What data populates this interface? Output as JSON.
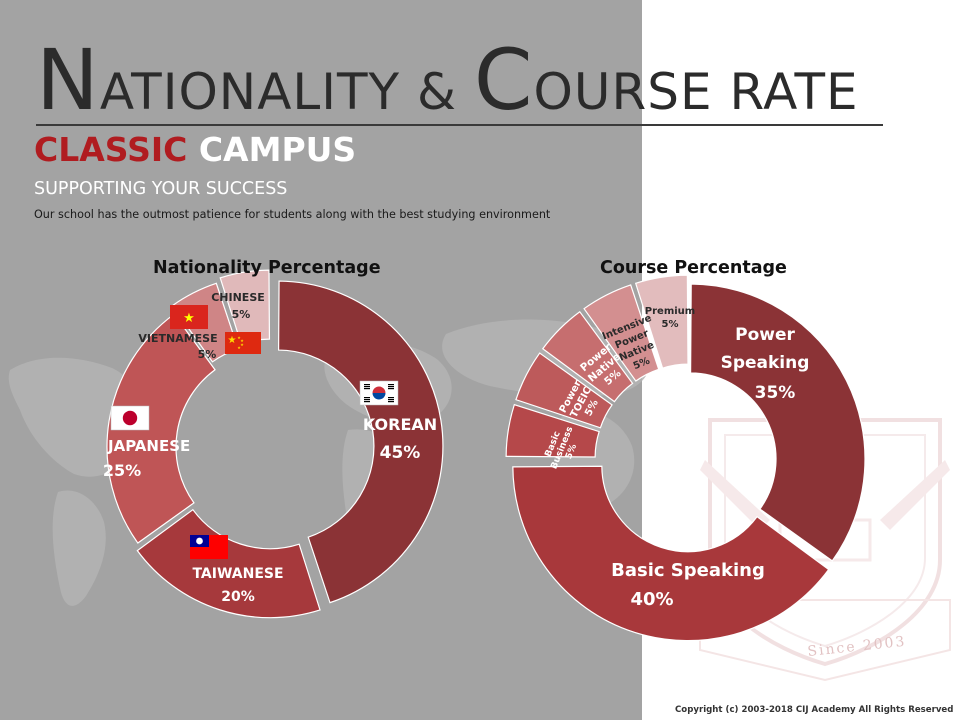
{
  "header": {
    "title_cap1": "N",
    "title_rest1": "ATIONALITY & ",
    "title_cap2": "C",
    "title_rest2": "OURSE RATE",
    "campus_red": "CLASSIC",
    "campus_white": "CAMPUS",
    "tagline": "SUPPORTING YOUR SUCCESS",
    "description": "Our school has the outmost patience for students along with the best studying environment"
  },
  "footer": {
    "copyright": "Copyright (c) 2003-2018 CIJ Academy All Rights Reserved"
  },
  "emblem": {
    "text": "Since 2003"
  },
  "colors": {
    "left_background": "#a3a3a3",
    "right_background": "#ffffff",
    "accent_red": "#b01c20"
  },
  "chart_data": [
    {
      "type": "pie",
      "donut": true,
      "title": "Nationality Percentage",
      "slices": [
        {
          "label": "KOREAN",
          "value": 45,
          "display": "45%",
          "color": "#8b3336",
          "label_color": "#ffffff",
          "flag": "korea-flag-icon"
        },
        {
          "label": "TAIWANESE",
          "value": 20,
          "display": "20%",
          "color": "#a6393c",
          "label_color": "#ffffff",
          "flag": "taiwan-flag-icon"
        },
        {
          "label": "JAPANESE",
          "value": 25,
          "display": "25%",
          "color": "#bf5556",
          "label_color": "#ffffff",
          "flag": "japan-flag-icon"
        },
        {
          "label": "VIETNAMESE",
          "value": 5,
          "display": "5%",
          "color": "#cf8586",
          "label_color": "#2a2a2a",
          "flag": "vietnam-flag-icon"
        },
        {
          "label": "CHINESE",
          "value": 5,
          "display": "5%",
          "color": "#e0b9ba",
          "label_color": "#2a2a2a",
          "flag": "china-flag-icon"
        }
      ]
    },
    {
      "type": "pie",
      "donut": true,
      "title": "Course Percentage",
      "slices": [
        {
          "label": "Power Speaking",
          "value": 35,
          "display": "35%",
          "color": "#8b3336",
          "label_color": "#ffffff"
        },
        {
          "label": "Basic Speaking",
          "value": 40,
          "display": "40%",
          "color": "#a8383b",
          "label_color": "#ffffff"
        },
        {
          "label": "Basic Business",
          "value": 5,
          "display": "5%",
          "color": "#b5484a",
          "label_color": "#ffffff"
        },
        {
          "label": "Power TOEIC",
          "value": 5,
          "display": "5%",
          "color": "#bd5a5b",
          "label_color": "#ffffff"
        },
        {
          "label": "Power Native",
          "value": 5,
          "display": "5%",
          "color": "#c66e6f",
          "label_color": "#ffffff"
        },
        {
          "label": "Intensive Power Native",
          "value": 5,
          "display": "5%",
          "color": "#d38f90",
          "label_color": "#2a2a2a"
        },
        {
          "label": "Premium",
          "value": 5,
          "display": "5%",
          "color": "#e2bcbd",
          "label_color": "#2a2a2a"
        }
      ]
    }
  ]
}
